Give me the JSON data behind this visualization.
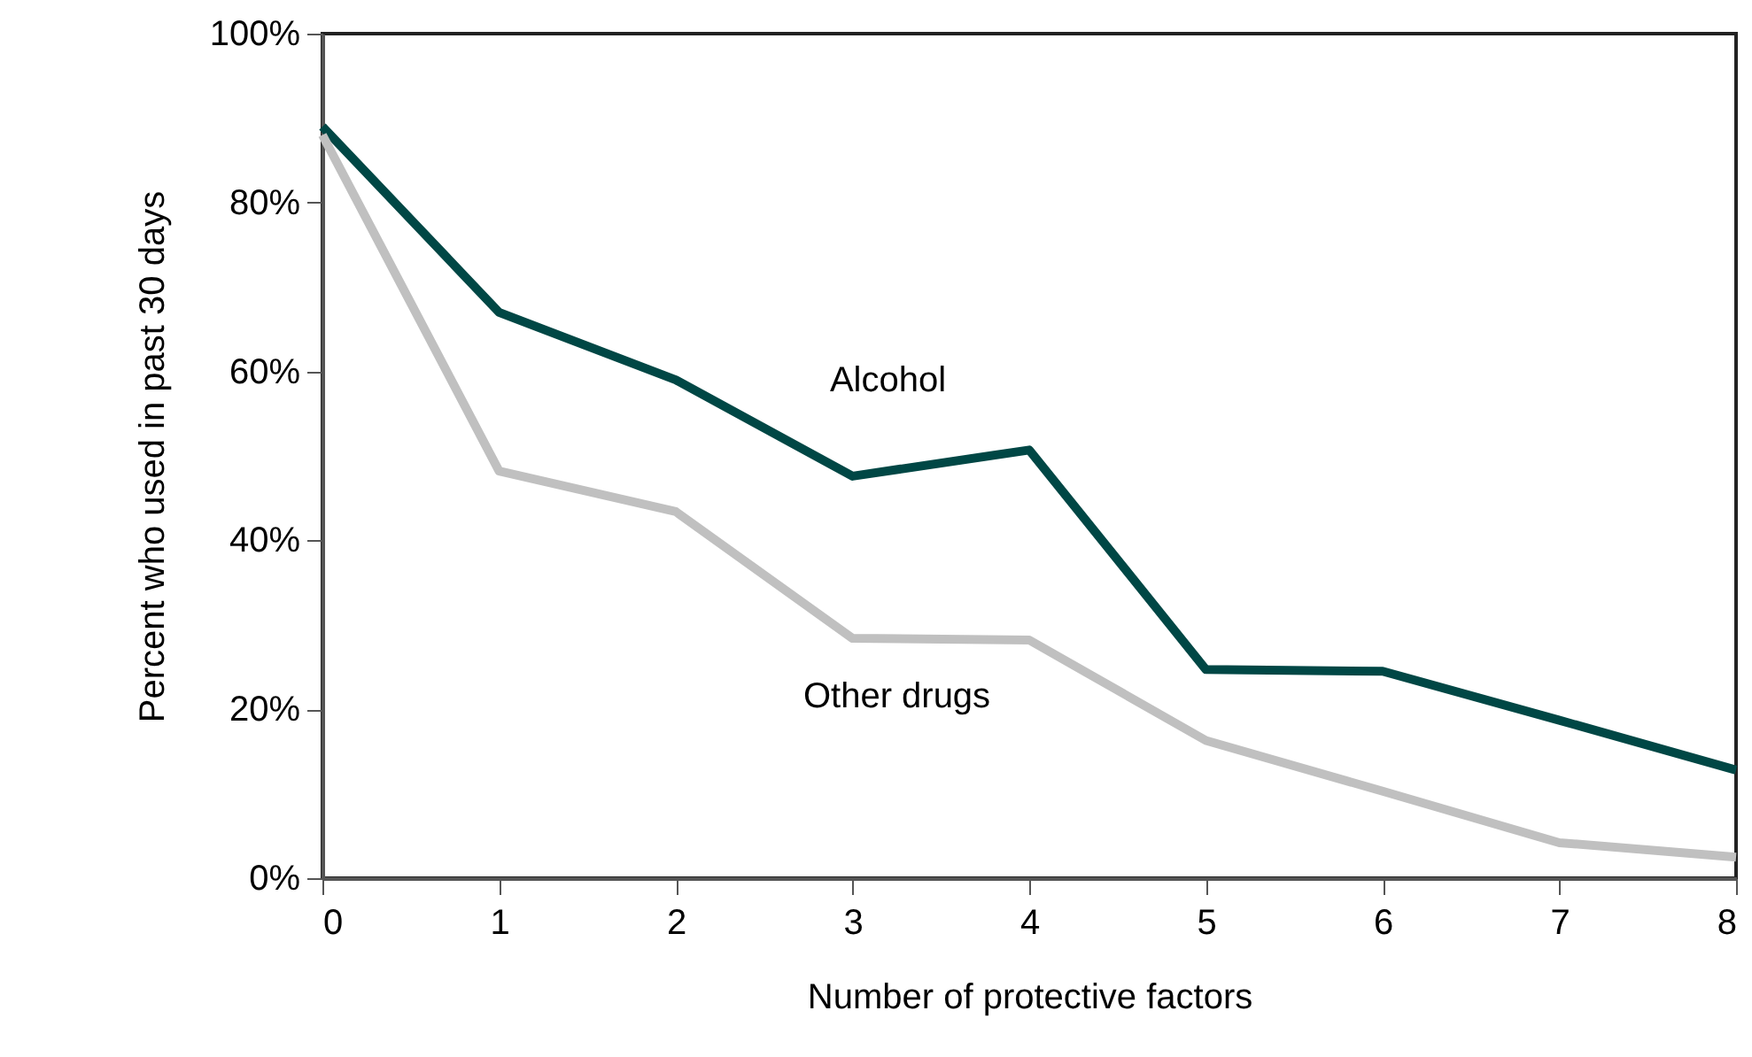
{
  "chart_data": {
    "type": "line",
    "xlabel": "Number of protective factors",
    "ylabel": "Percent who used in past 30 days",
    "x": [
      0,
      1,
      2,
      3,
      4,
      5,
      6,
      7,
      8
    ],
    "series": [
      {
        "name": "Alcohol",
        "color": "#004745",
        "values": [
          89,
          67,
          59,
          47.6,
          50.7,
          24.7,
          24.5,
          18.7,
          12.8
        ]
      },
      {
        "name": "Other drugs",
        "color": "#c0c0c0",
        "values": [
          88,
          48.2,
          43.4,
          28.4,
          28.2,
          16.3,
          10.3,
          4.2,
          2.5
        ]
      }
    ],
    "xlim": [
      0,
      8
    ],
    "xticks": [
      0,
      1,
      2,
      3,
      4,
      5,
      6,
      7,
      8
    ],
    "ylim": [
      0,
      100
    ],
    "yticks": [
      {
        "value": 0,
        "label": "0%"
      },
      {
        "value": 20,
        "label": "20%"
      },
      {
        "value": 40,
        "label": "40%"
      },
      {
        "value": 60,
        "label": "60%"
      },
      {
        "value": 80,
        "label": "80%"
      },
      {
        "value": 100,
        "label": "100%"
      }
    ],
    "grid": false,
    "legend": false,
    "line_style": "solid",
    "marker": "none"
  }
}
